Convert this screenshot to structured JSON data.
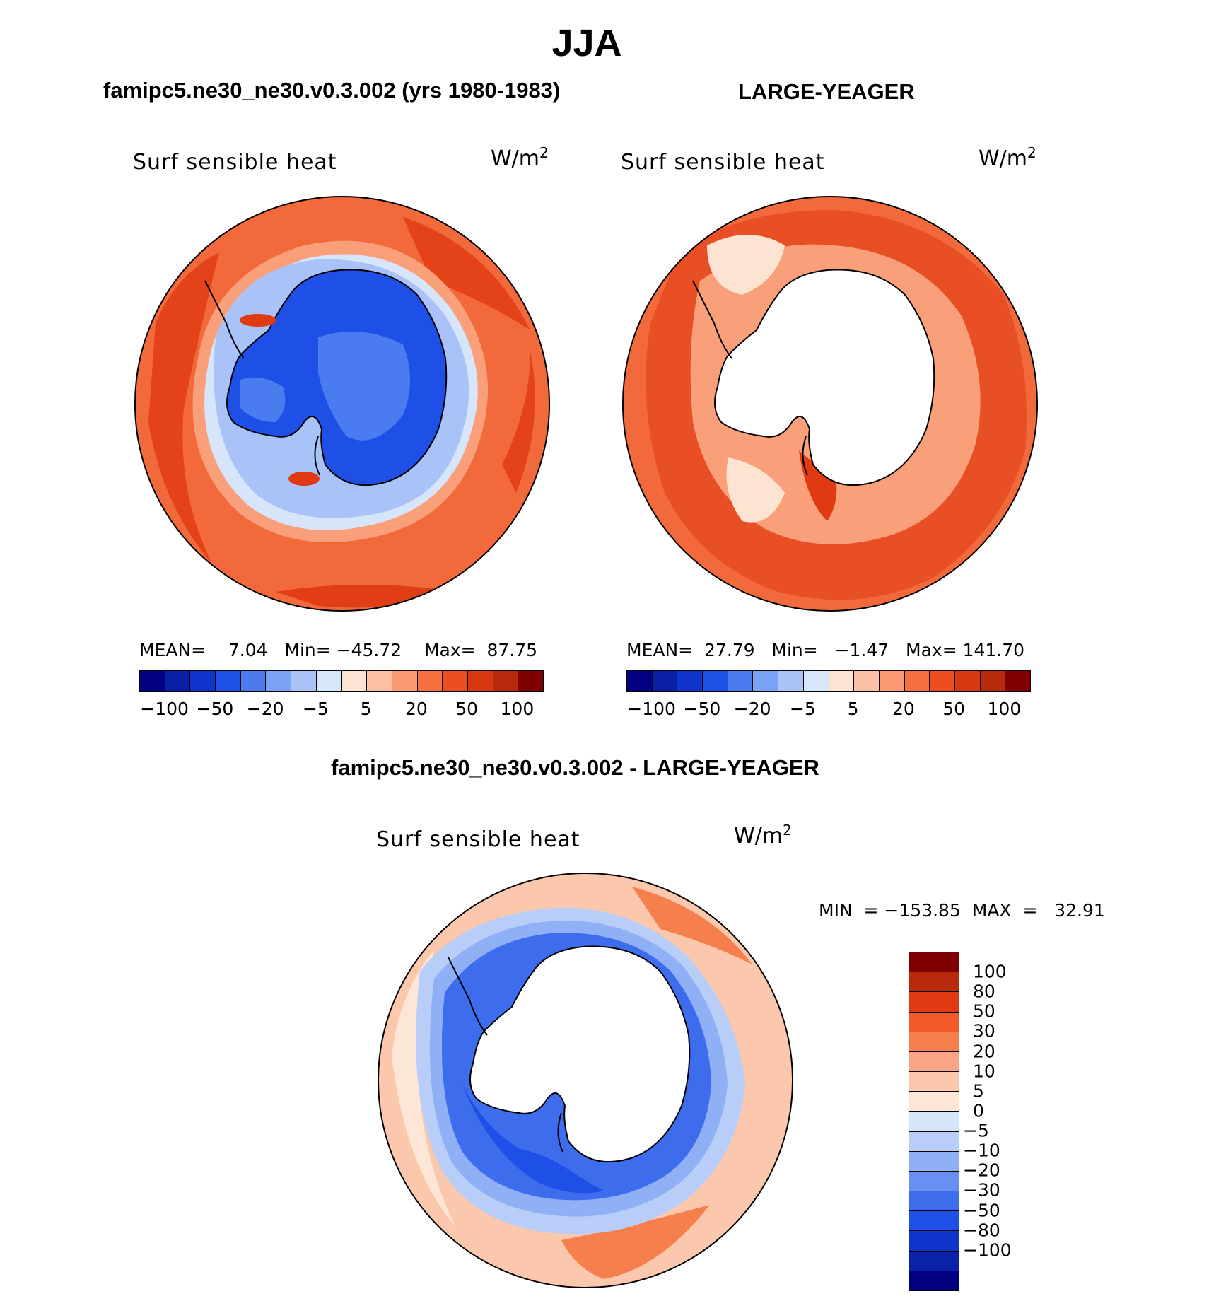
{
  "figure": {
    "season": "JJA",
    "colors": {
      "water_red_light": "#f9a07a",
      "water_red_mid": "#f2693c",
      "water_red_dark": "#e03a12",
      "ice_blue_dark": "#1e4fe6",
      "ice_blue_mid": "#4a7cf0",
      "ice_blue_light": "#a9c2f7",
      "pale_blue": "#d7e5fb",
      "pale_peach": "#fde3d2",
      "land_white": "#ffffff"
    }
  },
  "panels": {
    "model": {
      "title": "famipc5.ne30_ne30.v0.3.002 (yrs 1980-1983)",
      "variable": "Surf  sensible  heat",
      "units_base": "W/m",
      "units_exp": "2",
      "stats": "MEAN=    7.04   Min= −45.72    Max=  87.75"
    },
    "obs": {
      "title": "LARGE-YEAGER",
      "variable": "Surf  sensible  heat",
      "units_base": "W/m",
      "units_exp": "2",
      "stats": "MEAN=  27.79   Min=   −1.47   Max= 141.70"
    },
    "diff": {
      "title": "famipc5.ne30_ne30.v0.3.002 - LARGE-YEAGER",
      "variable": "Surf  sensible  heat",
      "units_base": "W/m",
      "units_exp": "2",
      "stats": "MIN  = −153.85  MAX  =   32.91"
    }
  },
  "colorbar_horizontal": {
    "swatches": [
      "#000080",
      "#0a1fa8",
      "#0f34cc",
      "#1e50e6",
      "#4a7cf0",
      "#7aa2f5",
      "#aac3f8",
      "#d6e6fb",
      "#fde3d2",
      "#fcc0a5",
      "#f99a72",
      "#f6713f",
      "#ee4d1f",
      "#d8380f",
      "#b72a0c",
      "#7f0000"
    ],
    "labels": [
      "−100",
      "−50",
      "−20",
      "−5",
      "5",
      "20",
      "50",
      "100"
    ]
  },
  "colorbar_vertical": {
    "swatches": [
      "#7f0000",
      "#b72a0c",
      "#e03a12",
      "#f25a2a",
      "#f6804d",
      "#f9a585",
      "#fcc8ad",
      "#fde6d6",
      "#d7e5fb",
      "#b8cef8",
      "#8fb0f5",
      "#6890f2",
      "#3d6cec",
      "#1e4fe6",
      "#0f34cc",
      "#0a22a8",
      "#000080"
    ],
    "labels": [
      "100",
      "80",
      "50",
      "30",
      "20",
      "10",
      "5",
      "0",
      "−5",
      "−10",
      "−20",
      "−30",
      "−50",
      "−80",
      "−100"
    ]
  }
}
